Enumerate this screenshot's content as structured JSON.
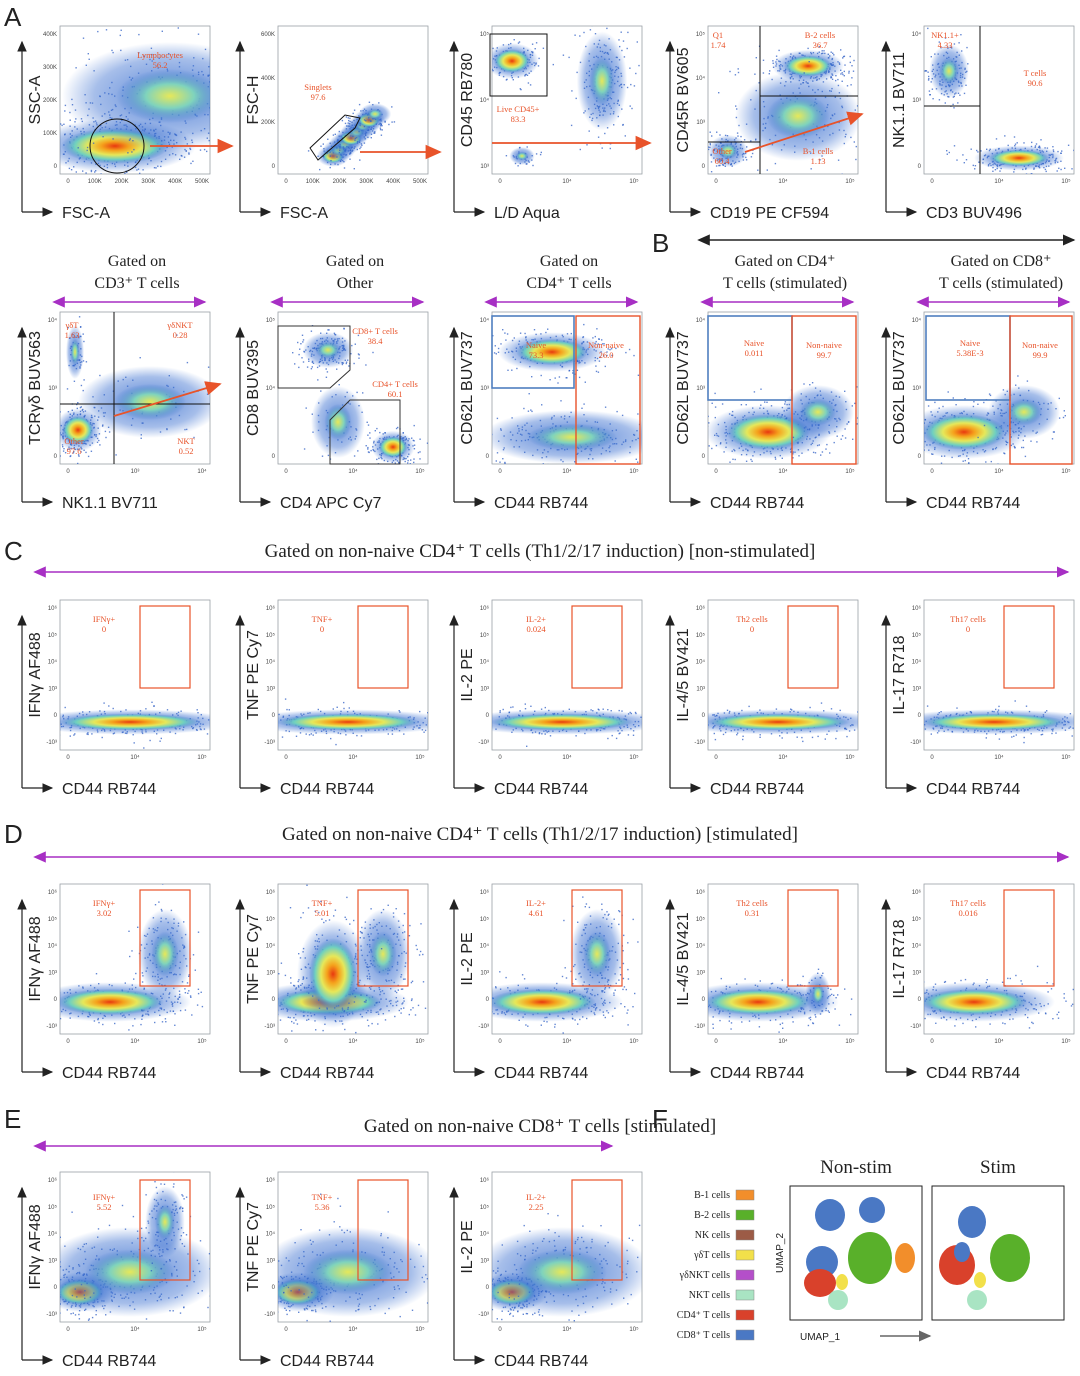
{
  "panel_letters": [
    "A",
    "B",
    "C",
    "D",
    "E",
    "F"
  ],
  "colors": {
    "gate": "#e8532a",
    "arrow_orange": "#e8532a",
    "arrow_purple": "#a72fc4",
    "naive_gate": "#4f7fc0",
    "axis": "#222222"
  },
  "row1": [
    {
      "ylabel": "SSC-A",
      "xlabel": "FSC-A",
      "yticks": [
        "400K",
        "300K",
        "200K",
        "100K",
        "0"
      ],
      "xticks": [
        "0",
        "100K",
        "200K",
        "300K",
        "400K",
        "500K"
      ],
      "gates": [
        {
          "label": "Lymphocytes",
          "value": "56.2"
        }
      ]
    },
    {
      "ylabel": "FSC-H",
      "xlabel": "FSC-A",
      "yticks": [
        "600K",
        "400K",
        "200K",
        "0"
      ],
      "xticks": [
        "0",
        "100K",
        "200K",
        "300K",
        "400K",
        "500K"
      ],
      "gates": [
        {
          "label": "Singlets",
          "value": "97.6"
        }
      ]
    },
    {
      "ylabel": "CD45 RB780",
      "xlabel": "L/D Aqua",
      "yticks": [
        "10⁵",
        "10⁴",
        "10³"
      ],
      "xticks": [
        "0",
        "10⁴",
        "10⁵"
      ],
      "gates": [
        {
          "label": "Live CD45+",
          "value": "83.3"
        }
      ]
    },
    {
      "ylabel": "CD45R BV605",
      "xlabel": "CD19 PE CF594",
      "yticks": [
        "10⁵",
        "10⁴",
        "10³",
        "0"
      ],
      "xticks": [
        "0",
        "10⁴",
        "10⁵"
      ],
      "gates": [
        {
          "label": "Q1",
          "value": "1.74"
        },
        {
          "label": "B-2 cells",
          "value": "36.7"
        },
        {
          "label": "Other",
          "value": "60.4"
        },
        {
          "label": "B-1 cells",
          "value": "1.13"
        }
      ]
    },
    {
      "ylabel": "NK1.1 BV711",
      "xlabel": "CD3 BUV496",
      "yticks": [
        "10⁴",
        "10³",
        "0"
      ],
      "xticks": [
        "0",
        "10⁴",
        "10⁵"
      ],
      "gates": [
        {
          "label": "NK1.1+",
          "value": "4.33"
        },
        {
          "label": "T cells",
          "value": "90.6"
        }
      ]
    }
  ],
  "row2": [
    {
      "header": [
        "Gated on",
        "CD3⁺ T cells"
      ],
      "ylabel": "TCRγδ BUV563",
      "xlabel": "NK1.1 BV711",
      "yticks": [
        "10⁴",
        "10³",
        "0"
      ],
      "xticks": [
        "0",
        "10³",
        "10⁴"
      ],
      "gates": [
        {
          "label": "γδT",
          "value": "1.63"
        },
        {
          "label": "γδNKT",
          "value": "0.28"
        },
        {
          "label": "Other",
          "value": "97.6"
        },
        {
          "label": "NKT",
          "value": "0.52"
        }
      ]
    },
    {
      "header": [
        "Gated on",
        "Other"
      ],
      "ylabel": "CD8 BUV395",
      "xlabel": "CD4 APC Cy7",
      "yticks": [
        "10⁵",
        "10⁴",
        "0"
      ],
      "xticks": [
        "0",
        "10⁴",
        "10⁵"
      ],
      "gates": [
        {
          "label": "CD8+ T cells",
          "value": "38.4"
        },
        {
          "label": "CD4+ T cells",
          "value": "60.1"
        }
      ]
    },
    {
      "header": [
        "Gated on",
        "CD4⁺ T cells"
      ],
      "ylabel": "CD62L BUV737",
      "xlabel": "CD44 RB744",
      "yticks": [
        "10⁴",
        "10³",
        "0"
      ],
      "xticks": [
        "0",
        "10⁴",
        "10⁵"
      ],
      "gates": [
        {
          "label": "Naive",
          "value": "73.3"
        },
        {
          "label": "Non-naive",
          "value": "26.0"
        }
      ]
    },
    {
      "header": [
        "Gated on CD4⁺",
        "T cells (stimulated)"
      ],
      "ylabel": "CD62L BUV737",
      "xlabel": "CD44 RB744",
      "yticks": [
        "10⁴",
        "10³",
        "0"
      ],
      "xticks": [
        "0",
        "10⁴",
        "10⁵"
      ],
      "gates": [
        {
          "label": "Naive",
          "value": "0.011"
        },
        {
          "label": "Non-naive",
          "value": "99.7"
        }
      ]
    },
    {
      "header": [
        "Gated on CD8⁺",
        "T cells (stimulated)"
      ],
      "ylabel": "CD62L BUV737",
      "xlabel": "CD44 RB744",
      "yticks": [
        "10⁴",
        "10³",
        "0"
      ],
      "xticks": [
        "0",
        "10⁴",
        "10⁵"
      ],
      "gates": [
        {
          "label": "Naive",
          "value": "5.38E-3"
        },
        {
          "label": "Non-naive",
          "value": "99.9"
        }
      ]
    }
  ],
  "sectionC": {
    "title": "Gated on non-naive CD4⁺ T cells (Th1/2/17 induction) [non-stimulated]",
    "plots": [
      {
        "ylabel": "IFNγ AF488",
        "xlabel": "CD44 RB744",
        "gate": "IFNγ+",
        "value": "0"
      },
      {
        "ylabel": "TNF PE Cy7",
        "xlabel": "CD44 RB744",
        "gate": "TNF+",
        "value": "0"
      },
      {
        "ylabel": "IL-2 PE",
        "xlabel": "CD44 RB744",
        "gate": "IL-2+",
        "value": "0.024"
      },
      {
        "ylabel": "IL-4/5 BV421",
        "xlabel": "CD44 RB744",
        "gate": "Th2 cells",
        "value": "0"
      },
      {
        "ylabel": "IL-17 R718",
        "xlabel": "CD44 RB744",
        "gate": "Th17 cells",
        "value": "0"
      }
    ],
    "yticks": [
      "10⁶",
      "10⁵",
      "10⁴",
      "10³",
      "0",
      "-10³"
    ],
    "xticks": [
      "0",
      "10⁴",
      "10⁵"
    ]
  },
  "sectionD": {
    "title": "Gated on non-naive CD4⁺ T cells (Th1/2/17 induction) [stimulated]",
    "plots": [
      {
        "ylabel": "IFNγ AF488",
        "xlabel": "CD44 RB744",
        "gate": "IFNγ+",
        "value": "3.02"
      },
      {
        "ylabel": "TNF PE Cy7",
        "xlabel": "CD44 RB744",
        "gate": "TNF+",
        "value": "5.01"
      },
      {
        "ylabel": "IL-2 PE",
        "xlabel": "CD44 RB744",
        "gate": "IL-2+",
        "value": "4.61"
      },
      {
        "ylabel": "IL-4/5 BV421",
        "xlabel": "CD44 RB744",
        "gate": "Th2 cells",
        "value": "0.31"
      },
      {
        "ylabel": "IL-17 R718",
        "xlabel": "CD44 RB744",
        "gate": "Th17 cells",
        "value": "0.016"
      }
    ],
    "yticks": [
      "10⁶",
      "10⁵",
      "10⁴",
      "10³",
      "0",
      "-10³"
    ],
    "xticks": [
      "0",
      "10⁴",
      "10⁵"
    ]
  },
  "sectionE": {
    "title": "Gated on non-naive CD8⁺ T cells  [stimulated]",
    "plots": [
      {
        "ylabel": "IFNγ AF488",
        "xlabel": "CD44 RB744",
        "gate": "IFNγ+",
        "value": "5.52"
      },
      {
        "ylabel": "TNF PE Cy7",
        "xlabel": "CD44 RB744",
        "gate": "TNF+",
        "value": "5.36"
      },
      {
        "ylabel": "IL-2 PE",
        "xlabel": "CD44 RB744",
        "gate": "IL-2+",
        "value": "2.25"
      }
    ],
    "yticks": [
      "10⁶",
      "10⁵",
      "10⁴",
      "10³",
      "0",
      "-10³"
    ],
    "xticks": [
      "0",
      "10⁴",
      "10⁵"
    ]
  },
  "sectionF": {
    "legend": [
      {
        "label": "B-1 cells",
        "color": "#f28e2b"
      },
      {
        "label": "B-2 cells",
        "color": "#59b02a"
      },
      {
        "label": "NK cells",
        "color": "#9c5b46"
      },
      {
        "label": "γδT cells",
        "color": "#f2e04a"
      },
      {
        "label": "γδNKT cells",
        "color": "#b44fc9"
      },
      {
        "label": "NKT cells",
        "color": "#a9e4c3"
      },
      {
        "label": "CD4⁺ T cells",
        "color": "#d9412b"
      },
      {
        "label": "CD8⁺ T cells",
        "color": "#4a78c4"
      }
    ],
    "panels": [
      "Non-stim",
      "Stim"
    ],
    "xlabel": "UMAP_1",
    "ylabel": "UMAP_2"
  }
}
